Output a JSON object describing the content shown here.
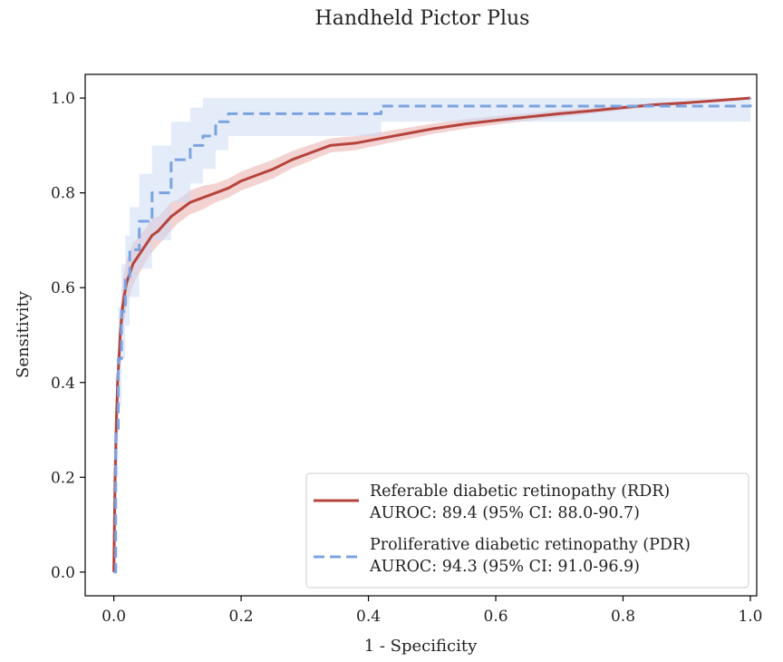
{
  "chart_data": {
    "type": "line",
    "title": "Handheld Pictor Plus",
    "xlabel": "1 - Specificity",
    "ylabel": "Sensitivity",
    "xlim": [
      -0.045,
      1.01
    ],
    "ylim": [
      -0.05,
      1.05
    ],
    "xticks": [
      0.0,
      0.2,
      0.4,
      0.6,
      0.8,
      1.0
    ],
    "yticks": [
      0.0,
      0.2,
      0.4,
      0.6,
      0.8,
      1.0
    ],
    "xtick_labels": [
      "0.0",
      "0.2",
      "0.4",
      "0.6",
      "0.8",
      "1.0"
    ],
    "ytick_labels": [
      "0.0",
      "0.2",
      "0.4",
      "0.6",
      "0.8",
      "1.0"
    ],
    "grid": false,
    "legend_position": "lower-right",
    "series": [
      {
        "name": "Referable diabetic retinopathy (RDR)",
        "legend_line2": "AUROC: 89.4 (95% CI: 88.0-90.7)",
        "color": "#b5443d",
        "band_color": "#e8a8a5",
        "line_style": "solid",
        "x": [
          0.0,
          0.002,
          0.004,
          0.006,
          0.008,
          0.01,
          0.013,
          0.016,
          0.02,
          0.025,
          0.03,
          0.035,
          0.04,
          0.05,
          0.06,
          0.07,
          0.08,
          0.09,
          0.1,
          0.12,
          0.14,
          0.16,
          0.18,
          0.2,
          0.22,
          0.25,
          0.28,
          0.31,
          0.34,
          0.38,
          0.42,
          0.46,
          0.5,
          0.55,
          0.6,
          0.65,
          0.7,
          0.75,
          0.8,
          0.85,
          0.9,
          0.95,
          1.0
        ],
        "y": [
          0.0,
          0.2,
          0.32,
          0.4,
          0.45,
          0.5,
          0.55,
          0.58,
          0.61,
          0.63,
          0.65,
          0.66,
          0.67,
          0.69,
          0.71,
          0.72,
          0.735,
          0.75,
          0.76,
          0.78,
          0.79,
          0.8,
          0.81,
          0.825,
          0.835,
          0.85,
          0.87,
          0.885,
          0.9,
          0.905,
          0.915,
          0.925,
          0.935,
          0.945,
          0.953,
          0.96,
          0.967,
          0.973,
          0.98,
          0.986,
          0.99,
          0.995,
          1.0
        ],
        "ci_lower": [
          0.0,
          0.15,
          0.27,
          0.35,
          0.4,
          0.45,
          0.5,
          0.53,
          0.56,
          0.585,
          0.605,
          0.62,
          0.63,
          0.655,
          0.675,
          0.69,
          0.705,
          0.72,
          0.735,
          0.755,
          0.765,
          0.78,
          0.79,
          0.805,
          0.815,
          0.83,
          0.852,
          0.868,
          0.885,
          0.89,
          0.902,
          0.913,
          0.924,
          0.935,
          0.944,
          0.952,
          0.96,
          0.967,
          0.975,
          0.982,
          0.987,
          0.993,
          1.0
        ],
        "ci_upper": [
          0.0,
          0.25,
          0.37,
          0.45,
          0.5,
          0.55,
          0.6,
          0.63,
          0.66,
          0.675,
          0.695,
          0.7,
          0.71,
          0.725,
          0.745,
          0.75,
          0.765,
          0.78,
          0.785,
          0.805,
          0.815,
          0.82,
          0.83,
          0.845,
          0.855,
          0.87,
          0.888,
          0.902,
          0.915,
          0.92,
          0.928,
          0.937,
          0.946,
          0.955,
          0.962,
          0.968,
          0.974,
          0.979,
          0.985,
          0.99,
          0.993,
          0.997,
          1.0
        ]
      },
      {
        "name": "Proliferative diabetic retinopathy (PDR)",
        "legend_line2": "AUROC: 94.3 (95% CI: 91.0-96.9)",
        "color": "#7ba3e0",
        "band_color": "#c9daf5",
        "line_style": "dashed",
        "x": [
          0.0,
          0.003,
          0.003,
          0.007,
          0.007,
          0.012,
          0.012,
          0.018,
          0.018,
          0.025,
          0.025,
          0.04,
          0.04,
          0.06,
          0.06,
          0.09,
          0.09,
          0.12,
          0.12,
          0.14,
          0.14,
          0.16,
          0.16,
          0.18,
          0.18,
          0.42,
          0.42,
          1.0,
          1.0
        ],
        "y": [
          0.0,
          0.0,
          0.3,
          0.3,
          0.45,
          0.45,
          0.55,
          0.55,
          0.62,
          0.62,
          0.68,
          0.68,
          0.74,
          0.74,
          0.8,
          0.8,
          0.87,
          0.87,
          0.9,
          0.9,
          0.92,
          0.92,
          0.95,
          0.95,
          0.967,
          0.967,
          0.983,
          0.983,
          1.0
        ],
        "ci_lower": [
          0.0,
          0.0,
          0.2,
          0.2,
          0.35,
          0.35,
          0.45,
          0.45,
          0.52,
          0.52,
          0.58,
          0.58,
          0.64,
          0.64,
          0.7,
          0.7,
          0.78,
          0.78,
          0.82,
          0.82,
          0.85,
          0.85,
          0.89,
          0.89,
          0.92,
          0.92,
          0.95,
          0.95,
          0.95
        ],
        "ci_upper": [
          0.0,
          0.0,
          0.42,
          0.42,
          0.56,
          0.56,
          0.65,
          0.65,
          0.71,
          0.71,
          0.77,
          0.77,
          0.84,
          0.84,
          0.9,
          0.9,
          0.95,
          0.95,
          0.98,
          0.98,
          1.0,
          1.0,
          1.0,
          1.0,
          1.0,
          1.0,
          1.0,
          1.0,
          1.0
        ]
      }
    ]
  }
}
